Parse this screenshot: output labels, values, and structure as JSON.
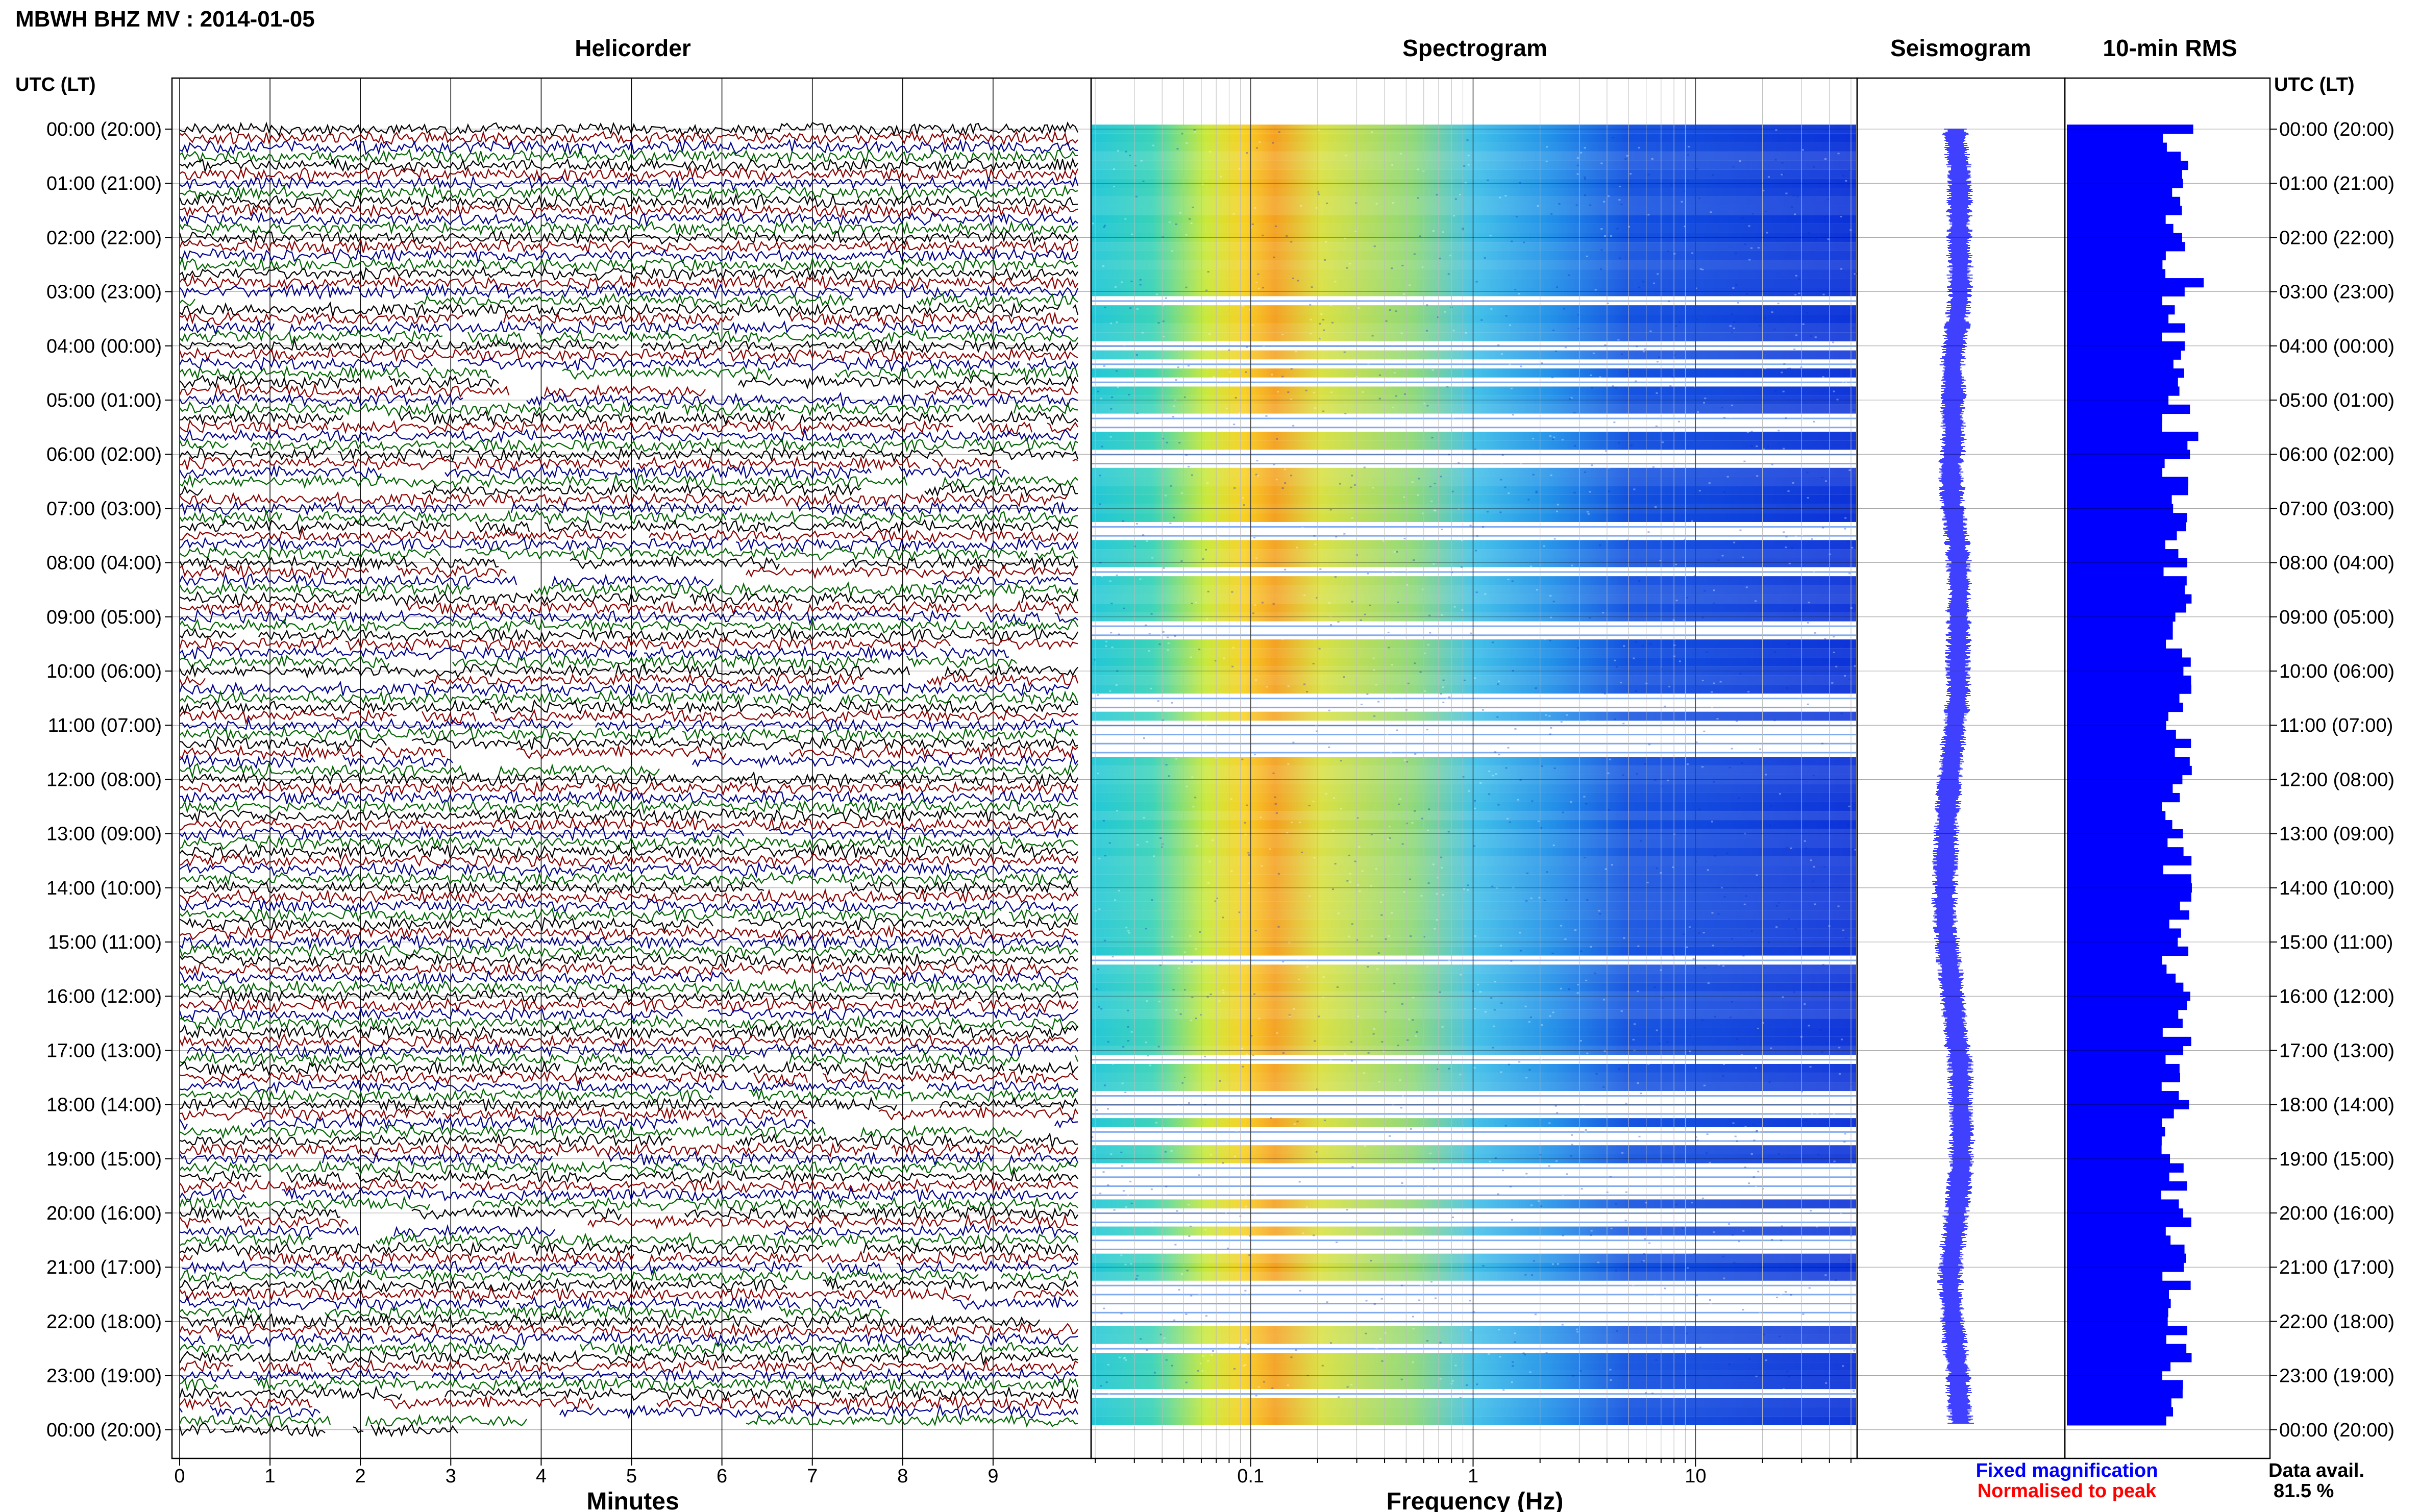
{
  "header": {
    "station_title": "MBWH BHZ MV : 2014-01-05",
    "panel_titles": {
      "helicorder": "Helicorder",
      "spectrogram": "Spectrogram",
      "seismogram": "Seismogram",
      "rms": "10-min RMS"
    },
    "time_axis_label": "UTC (LT)"
  },
  "footer": {
    "minutes_label": "Minutes",
    "frequency_label": "Frequency (Hz)",
    "legend_fixed": "Fixed magnification",
    "legend_normalised": "Normalised to peak",
    "data_avail_label": "Data avail.",
    "data_avail_value": "81.5 %"
  },
  "colors": {
    "trace_black": "#000000",
    "trace_red": "#8b0000",
    "trace_blue": "#00008b",
    "trace_green": "#006400",
    "rms_bar": "#0000ff",
    "seismogram": "#0000ff",
    "legend_fixed": "#0000ff",
    "legend_normalised": "#ff0000"
  },
  "chart_data": [
    {
      "type": "line",
      "panel": "helicorder",
      "xlabel": "Minutes",
      "x_ticks": [
        "0",
        "1",
        "2",
        "3",
        "4",
        "5",
        "6",
        "7",
        "8",
        "9"
      ],
      "xlim": [
        0,
        10
      ],
      "row_minutes": 10,
      "hour_labels": [
        "00:00 (20:00)",
        "01:00 (21:00)",
        "02:00 (22:00)",
        "03:00 (23:00)",
        "04:00 (00:00)",
        "05:00 (01:00)",
        "06:00 (02:00)",
        "07:00 (03:00)",
        "08:00 (04:00)",
        "09:00 (05:00)",
        "10:00 (06:00)",
        "11:00 (07:00)",
        "12:00 (08:00)",
        "13:00 (09:00)",
        "14:00 (10:00)",
        "15:00 (11:00)",
        "16:00 (12:00)",
        "17:00 (13:00)",
        "18:00 (14:00)",
        "19:00 (15:00)",
        "20:00 (16:00)",
        "21:00 (17:00)",
        "22:00 (18:00)",
        "23:00 (19:00)",
        "00:00 (20:00)"
      ],
      "trace_color_cycle": [
        "black",
        "red",
        "blue",
        "green"
      ]
    },
    {
      "type": "heatmap",
      "panel": "spectrogram",
      "xlabel": "Frequency (Hz)",
      "x_scale": "log",
      "xlim": [
        0.02,
        50
      ],
      "x_ticks": [
        {
          "value": 0.1,
          "label": "0.1"
        },
        {
          "value": 1,
          "label": "1"
        },
        {
          "value": 10,
          "label": "10"
        }
      ]
    },
    {
      "type": "line",
      "panel": "seismogram",
      "ylim_hours": [
        0,
        24
      ]
    },
    {
      "type": "bar",
      "panel": "10-min RMS",
      "orientation": "horizontal",
      "interval_minutes": 10
    }
  ]
}
